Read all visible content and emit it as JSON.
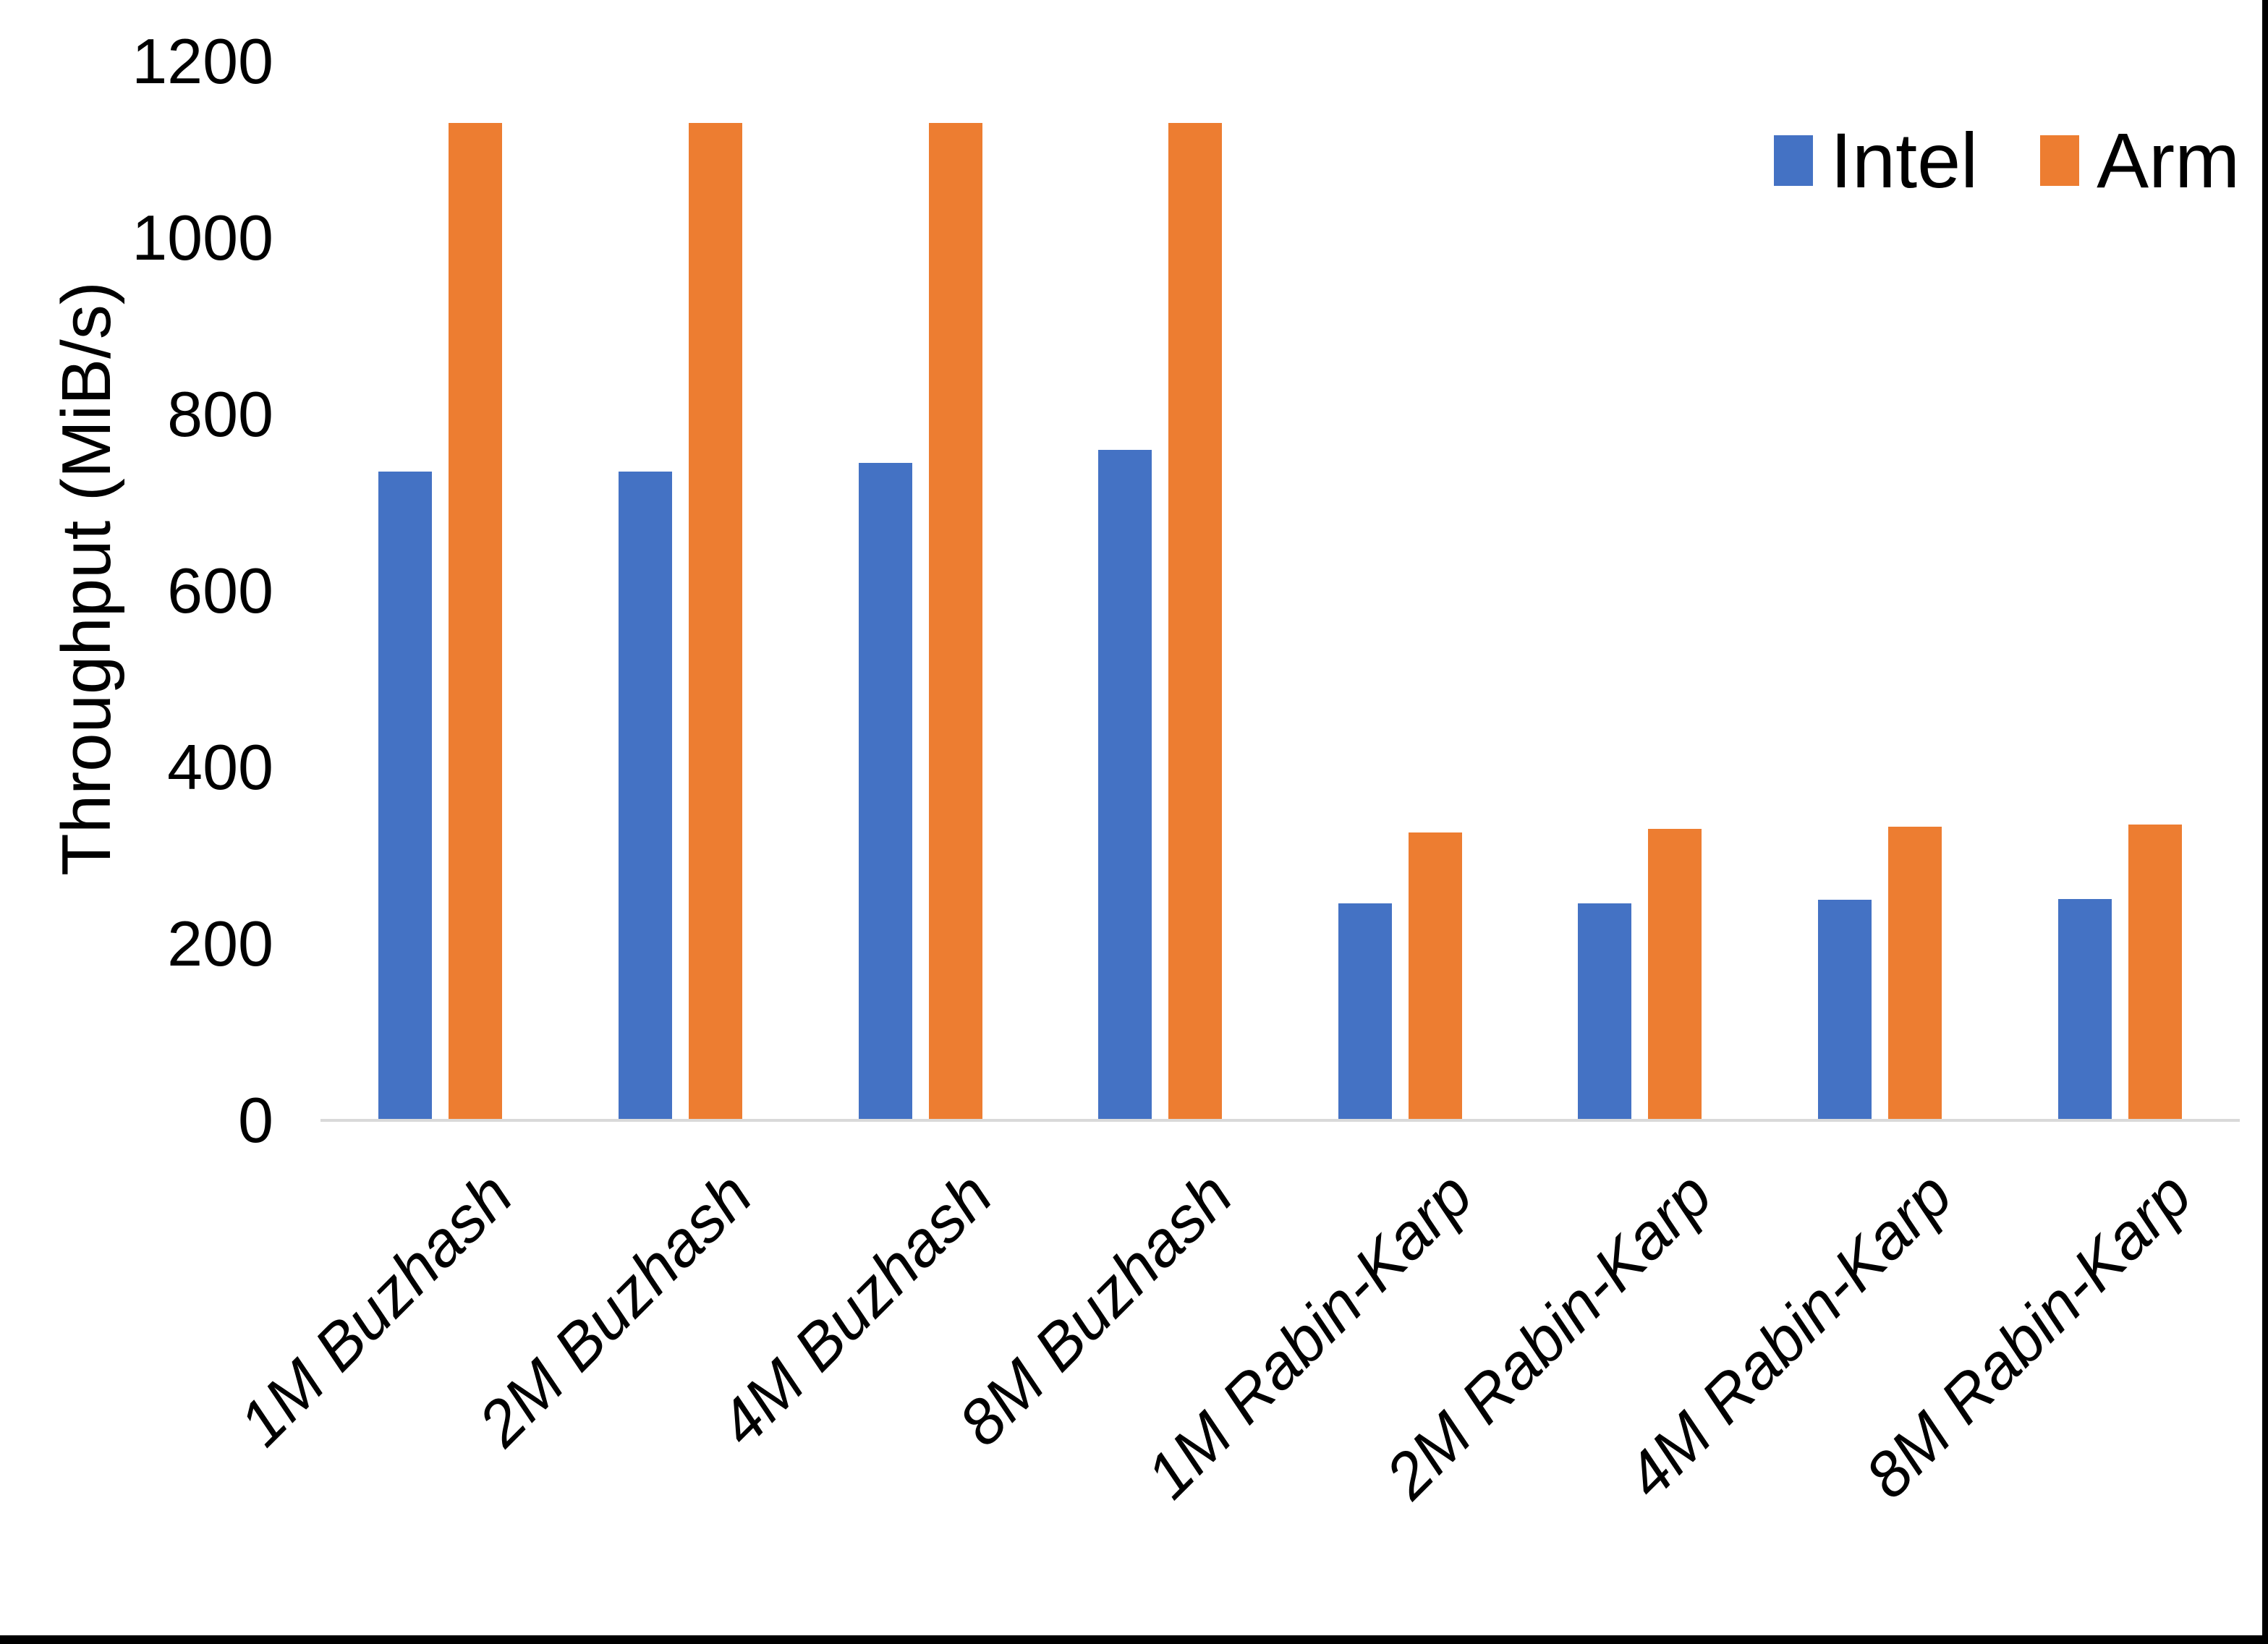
{
  "chart_data": {
    "type": "bar",
    "title": "",
    "xlabel": "",
    "ylabel": "Throughput (MiB/s)",
    "categories": [
      "1M Buzhash",
      "2M Buzhash",
      "4M Buzhash",
      "8M Buzhash",
      "1M Rabin-Karp",
      "2M Rabin-Karp",
      "4M Rabin-Karp",
      "8M Rabin-Karp"
    ],
    "series": [
      {
        "name": "Intel",
        "color": "#4472C4",
        "values": [
          735,
          735,
          745,
          760,
          246,
          246,
          250,
          251
        ]
      },
      {
        "name": "Arm",
        "color": "#ED7D31",
        "values": [
          1130,
          1130,
          1130,
          1130,
          326,
          330,
          333,
          335
        ]
      }
    ],
    "ylim": [
      0,
      1200
    ],
    "yticks": [
      0,
      200,
      400,
      600,
      800,
      1000,
      1200
    ],
    "grid": false,
    "legend_position": "top-right",
    "x_label_rotation_deg": -45,
    "x_label_style": "italic"
  },
  "colors": {
    "background": "#FFFFFF",
    "text": "#000000",
    "axis_line": "#D9D9D9",
    "frame_edge": "#000000"
  }
}
